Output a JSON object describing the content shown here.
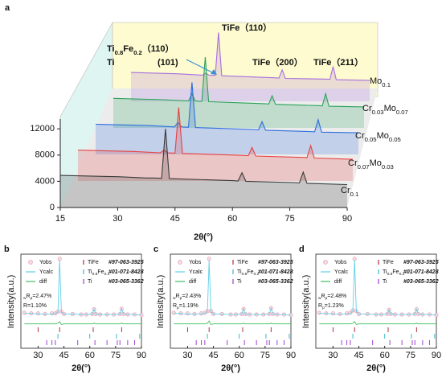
{
  "chart_data": [
    {
      "type": "waterfall",
      "label": "a",
      "x_label": "2θ(°)",
      "x": [
        15,
        30,
        37.5,
        38.5,
        39.5,
        41.5,
        42.5,
        43.5,
        60,
        61.5,
        62.5,
        63.5,
        76,
        77.5,
        78.5,
        79.5,
        90
      ],
      "xlim": [
        15,
        90
      ],
      "xticks": [
        15,
        30,
        45,
        60,
        75,
        90
      ],
      "ylim": [
        0,
        13500
      ],
      "yticks": [
        0,
        4000,
        8000,
        12000
      ],
      "series": [
        {
          "name": "Cr0.1",
          "color": "#3a3a3a",
          "values": [
            4900,
            4700,
            4500,
            4500,
            4500,
            4450,
            12000,
            4400,
            4100,
            4050,
            5300,
            4000,
            3800,
            3750,
            5400,
            3700,
            3500
          ]
        },
        {
          "name": "Cr0.07Mo0.03",
          "color": "#e84040",
          "values": [
            4700,
            4500,
            4300,
            4700,
            4300,
            4250,
            11200,
            4200,
            3900,
            3850,
            5100,
            3800,
            3600,
            3550,
            5400,
            3500,
            3300
          ]
        },
        {
          "name": "Cr0.05Mo0.05",
          "color": "#2d6ee0",
          "values": [
            4600,
            4400,
            4200,
            4900,
            4200,
            4150,
            11000,
            4100,
            3800,
            3750,
            5000,
            3700,
            3500,
            3450,
            5300,
            3400,
            3300
          ]
        },
        {
          "name": "Cr0.03Mo0.07",
          "color": "#2aa35a",
          "values": [
            4500,
            4300,
            4100,
            5200,
            4100,
            4050,
            10800,
            4000,
            3700,
            3650,
            4900,
            3600,
            3400,
            3350,
            5200,
            3300,
            3200
          ]
        },
        {
          "name": "Mo0.1",
          "color": "#a86fe0",
          "values": [
            4400,
            4200,
            4000,
            4300,
            4000,
            3950,
            10500,
            3900,
            3600,
            3550,
            4800,
            3500,
            3400,
            3350,
            5300,
            3300,
            3200
          ]
        }
      ],
      "annotations": [
        "TiFe（110）",
        "Ti0.8Fe0.2（110）",
        "Ti",
        "(101)",
        "TiFe（200）",
        "TiFe（211）"
      ]
    },
    {
      "type": "refinement",
      "label": "b",
      "x_label": "2θ(°)",
      "y_label": "Intensity(a.u.)",
      "x": [
        22,
        26,
        30,
        34,
        38,
        40,
        41.5,
        42.5,
        43.5,
        45,
        50,
        55,
        58,
        61.5,
        62.5,
        63.5,
        66,
        70,
        74,
        77.5,
        78.5,
        79.5,
        82,
        86,
        90
      ],
      "xlim": [
        20,
        90
      ],
      "xticks": [
        30,
        45,
        60,
        75,
        90
      ],
      "ylim": [
        -54,
        108
      ],
      "series": [
        {
          "name": "Yobs",
          "color": "#e7a3b8",
          "values": [
            7,
            6,
            6,
            5,
            6,
            6,
            9,
            100,
            9,
            5,
            5,
            4,
            4,
            5,
            13,
            5,
            4,
            4,
            4,
            5,
            14,
            5,
            4,
            4,
            3
          ]
        },
        {
          "name": "Ycalc",
          "color": "#5fd0e8",
          "values": [
            6,
            6,
            5,
            5,
            5,
            6,
            8,
            98,
            8,
            5,
            5,
            4,
            4,
            5,
            13,
            5,
            4,
            4,
            4,
            5,
            14,
            5,
            4,
            4,
            3
          ]
        },
        {
          "name": "diff",
          "color": "#3fbf5f",
          "values": [
            -12,
            -12,
            -12,
            -12,
            -12,
            -12,
            -11,
            -8,
            -13,
            -12,
            -12,
            -12,
            -12,
            -12,
            -11,
            -12,
            -12,
            -12,
            -12,
            -12,
            -11,
            -12,
            -12,
            -12,
            -12
          ]
        }
      ],
      "phases": [
        {
          "name": "TiFe",
          "card": "#97-063-3925",
          "color": "#b03040",
          "positions": [
            30,
            42.5,
            62,
            78.5
          ]
        },
        {
          "name": "Ti0.8Fe0.2",
          "card": "#01-071-8428",
          "color": "#38b8d0",
          "positions": [
            41.5,
            60,
            75.5,
            89
          ]
        },
        {
          "name": "Ti",
          "card": "#03-065-3362",
          "color": "#a040d0",
          "positions": [
            35,
            38,
            40,
            53,
            63,
            70,
            76,
            77.5,
            82,
            86
          ]
        }
      ],
      "stats": [
        "wRp=2.47%",
        "R=1.10%"
      ]
    },
    {
      "type": "refinement",
      "label": "c",
      "x_label": "2θ(°)",
      "y_label": "Intensity(a.u.)",
      "x": [
        22,
        26,
        30,
        34,
        38,
        40,
        41.5,
        42.5,
        43.5,
        45,
        50,
        55,
        58,
        61.5,
        62.5,
        63.5,
        66,
        70,
        74,
        77.5,
        78.5,
        79.5,
        82,
        86,
        90
      ],
      "xlim": [
        20,
        90
      ],
      "xticks": [
        30,
        45,
        60,
        75,
        90
      ],
      "ylim": [
        -54,
        108
      ],
      "series": [
        {
          "name": "Yobs",
          "color": "#e7a3b8",
          "values": [
            7,
            6,
            6,
            5,
            6,
            7,
            10,
            100,
            10,
            5,
            5,
            4,
            4,
            5,
            14,
            5,
            4,
            4,
            4,
            5,
            15,
            5,
            4,
            4,
            3
          ]
        },
        {
          "name": "Ycalc",
          "color": "#5fd0e8",
          "values": [
            6,
            6,
            5,
            5,
            5,
            6,
            9,
            97,
            9,
            5,
            5,
            4,
            4,
            5,
            14,
            5,
            4,
            4,
            4,
            5,
            15,
            5,
            4,
            4,
            3
          ]
        },
        {
          "name": "diff",
          "color": "#3fbf5f",
          "values": [
            -12,
            -12,
            -12,
            -12,
            -12,
            -12,
            -11,
            -7,
            -13,
            -12,
            -12,
            -12,
            -12,
            -12,
            -11,
            -12,
            -12,
            -12,
            -12,
            -12,
            -11,
            -12,
            -12,
            -12,
            -12
          ]
        }
      ],
      "phases": [
        {
          "name": "TiFe",
          "card": "#97-063-3925",
          "color": "#b03040",
          "positions": [
            30,
            42.5,
            62,
            78.5
          ]
        },
        {
          "name": "Ti0.8Fe0.2",
          "card": "#01-071-8428",
          "color": "#38b8d0",
          "positions": [
            41.5,
            60,
            75.5,
            89
          ]
        },
        {
          "name": "Ti",
          "card": "#03-065-3362",
          "color": "#a040d0",
          "positions": [
            35,
            38,
            40,
            53,
            63,
            70,
            76,
            77.5,
            82,
            86
          ]
        }
      ],
      "stats": [
        "wRp=2.43%",
        "Rp=1.19%"
      ]
    },
    {
      "type": "refinement",
      "label": "d",
      "x_label": "2θ(°)",
      "y_label": "Intensity(a.u.)",
      "x": [
        22,
        26,
        30,
        34,
        38,
        40,
        41.5,
        42.5,
        43.5,
        45,
        50,
        55,
        58,
        61.5,
        62.5,
        63.5,
        66,
        70,
        74,
        77.5,
        78.5,
        79.5,
        82,
        86,
        90
      ],
      "xlim": [
        20,
        90
      ],
      "xticks": [
        30,
        45,
        60,
        75,
        90
      ],
      "ylim": [
        -54,
        108
      ],
      "series": [
        {
          "name": "Yobs",
          "color": "#e7a3b8",
          "values": [
            7,
            6,
            6,
            5,
            6,
            7,
            11,
            100,
            10,
            5,
            5,
            4,
            4,
            5,
            12,
            5,
            4,
            4,
            4,
            5,
            13,
            5,
            4,
            4,
            3
          ]
        },
        {
          "name": "Ycalc",
          "color": "#5fd0e8",
          "values": [
            6,
            6,
            5,
            5,
            5,
            6,
            10,
            98,
            9,
            5,
            5,
            4,
            4,
            5,
            12,
            5,
            4,
            4,
            4,
            5,
            13,
            5,
            4,
            4,
            3
          ]
        },
        {
          "name": "diff",
          "color": "#3fbf5f",
          "values": [
            -12,
            -12,
            -12,
            -12,
            -12,
            -12,
            -11,
            -8,
            -13,
            -12,
            -12,
            -12,
            -12,
            -12,
            -12,
            -12,
            -12,
            -12,
            -12,
            -12,
            -11,
            -12,
            -12,
            -12,
            -12
          ]
        }
      ],
      "phases": [
        {
          "name": "TiFe",
          "card": "#97-063-3925",
          "color": "#b03040",
          "positions": [
            30,
            42.5,
            62,
            78.5
          ]
        },
        {
          "name": "Ti0.8Fe0.2",
          "card": "#01-071-8428",
          "color": "#38b8d0",
          "positions": [
            41.5,
            60,
            75.5,
            89
          ]
        },
        {
          "name": "Ti",
          "card": "#03-065-3362",
          "color": "#a040d0",
          "positions": [
            35,
            38,
            40,
            53,
            63,
            70,
            76,
            77.5,
            82,
            86
          ]
        }
      ],
      "stats": [
        "wRp=2.48%",
        "Rp=1.23%"
      ]
    }
  ]
}
